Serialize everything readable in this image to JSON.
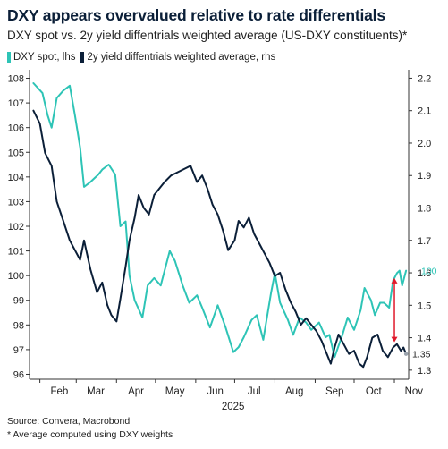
{
  "header": {
    "title": "DXY appears overvalued relative to rate differentials",
    "subtitle": "DXY spot vs. 2y yield diffentrials weighted average (US-DXY constituents)*"
  },
  "footer": {
    "source": "Source: Convera, Macrobond",
    "note": "* Average computed using DXY weights"
  },
  "colors": {
    "dxy": "#2ec4b6",
    "yield": "#0b1f38",
    "arrow": "#e0192b",
    "axis": "#333333"
  },
  "chart_data": {
    "type": "line",
    "title": "DXY appears overvalued relative to rate differentials",
    "subtitle": "DXY spot vs. 2y yield diffentrials weighted average (US-DXY constituents)*",
    "xlabel": "2025",
    "x_ticks": [
      "Feb",
      "Mar",
      "Apr",
      "May",
      "Jun",
      "Jul",
      "Aug",
      "Sep",
      "Oct",
      "Nov"
    ],
    "x_range": [
      "2025-01-24",
      "2025-11-12"
    ],
    "y_left": {
      "label": "",
      "min": 95.8,
      "max": 108.2,
      "ticks": [
        96,
        97,
        98,
        99,
        100,
        101,
        102,
        103,
        104,
        105,
        106,
        107,
        108
      ]
    },
    "y_right": {
      "label": "",
      "min": 1.272,
      "max": 2.215,
      "ticks": [
        1.3,
        1.4,
        1.5,
        1.6,
        1.7,
        1.8,
        1.9,
        2.0,
        2.1,
        2.2
      ]
    },
    "legend": {
      "position": "top-left"
    },
    "series": [
      {
        "name": "DXY spot, lhs",
        "axis": "left",
        "end_label": "100",
        "points": [
          [
            "2025-01-27",
            107.8
          ],
          [
            "2025-02-03",
            107.4
          ],
          [
            "2025-02-07",
            106.5
          ],
          [
            "2025-02-10",
            106.0
          ],
          [
            "2025-02-14",
            107.2
          ],
          [
            "2025-02-19",
            107.5
          ],
          [
            "2025-02-24",
            107.7
          ],
          [
            "2025-02-28",
            106.5
          ],
          [
            "2025-03-04",
            105.2
          ],
          [
            "2025-03-07",
            103.6
          ],
          [
            "2025-03-12",
            103.8
          ],
          [
            "2025-03-18",
            104.1
          ],
          [
            "2025-03-21",
            104.3
          ],
          [
            "2025-03-26",
            104.5
          ],
          [
            "2025-03-31",
            104.1
          ],
          [
            "2025-04-04",
            102.0
          ],
          [
            "2025-04-08",
            102.2
          ],
          [
            "2025-04-11",
            100.0
          ],
          [
            "2025-04-15",
            99.0
          ],
          [
            "2025-04-21",
            98.3
          ],
          [
            "2025-04-25",
            99.6
          ],
          [
            "2025-04-30",
            99.9
          ],
          [
            "2025-05-05",
            99.6
          ],
          [
            "2025-05-12",
            101.0
          ],
          [
            "2025-05-16",
            100.6
          ],
          [
            "2025-05-22",
            99.6
          ],
          [
            "2025-05-27",
            98.9
          ],
          [
            "2025-06-02",
            99.2
          ],
          [
            "2025-06-06",
            98.7
          ],
          [
            "2025-06-12",
            97.9
          ],
          [
            "2025-06-18",
            98.8
          ],
          [
            "2025-06-24",
            97.9
          ],
          [
            "2025-06-30",
            96.9
          ],
          [
            "2025-07-04",
            97.1
          ],
          [
            "2025-07-08",
            97.5
          ],
          [
            "2025-07-14",
            98.2
          ],
          [
            "2025-07-18",
            98.4
          ],
          [
            "2025-07-23",
            97.4
          ],
          [
            "2025-07-29",
            99.3
          ],
          [
            "2025-08-01",
            100.1
          ],
          [
            "2025-08-05",
            98.9
          ],
          [
            "2025-08-11",
            98.2
          ],
          [
            "2025-08-15",
            97.6
          ],
          [
            "2025-08-20",
            98.3
          ],
          [
            "2025-08-25",
            98.1
          ],
          [
            "2025-08-29",
            97.8
          ],
          [
            "2025-09-04",
            98.1
          ],
          [
            "2025-09-09",
            97.5
          ],
          [
            "2025-09-12",
            97.6
          ],
          [
            "2025-09-16",
            96.7
          ],
          [
            "2025-09-22",
            97.6
          ],
          [
            "2025-09-26",
            98.3
          ],
          [
            "2025-10-01",
            97.8
          ],
          [
            "2025-10-06",
            98.6
          ],
          [
            "2025-10-09",
            99.5
          ],
          [
            "2025-10-14",
            99.0
          ],
          [
            "2025-10-17",
            98.4
          ],
          [
            "2025-10-21",
            98.9
          ],
          [
            "2025-10-24",
            98.9
          ],
          [
            "2025-10-28",
            98.7
          ],
          [
            "2025-10-31",
            99.8
          ],
          [
            "2025-11-03",
            100.1
          ],
          [
            "2025-11-05",
            100.2
          ],
          [
            "2025-11-07",
            99.6
          ],
          [
            "2025-11-10",
            100.2
          ]
        ]
      },
      {
        "name": "2y yield diffentrials weighted average, rhs",
        "axis": "right",
        "end_label": "1.35",
        "points": [
          [
            "2025-01-27",
            2.1
          ],
          [
            "2025-02-01",
            2.06
          ],
          [
            "2025-02-05",
            1.97
          ],
          [
            "2025-02-10",
            1.93
          ],
          [
            "2025-02-14",
            1.82
          ],
          [
            "2025-02-19",
            1.76
          ],
          [
            "2025-02-24",
            1.7
          ],
          [
            "2025-02-28",
            1.67
          ],
          [
            "2025-03-04",
            1.64
          ],
          [
            "2025-03-07",
            1.7
          ],
          [
            "2025-03-12",
            1.61
          ],
          [
            "2025-03-17",
            1.54
          ],
          [
            "2025-03-21",
            1.57
          ],
          [
            "2025-03-25",
            1.5
          ],
          [
            "2025-03-28",
            1.47
          ],
          [
            "2025-04-01",
            1.45
          ],
          [
            "2025-04-04",
            1.52
          ],
          [
            "2025-04-08",
            1.62
          ],
          [
            "2025-04-11",
            1.7
          ],
          [
            "2025-04-15",
            1.77
          ],
          [
            "2025-04-18",
            1.84
          ],
          [
            "2025-04-22",
            1.8
          ],
          [
            "2025-04-26",
            1.78
          ],
          [
            "2025-04-30",
            1.84
          ],
          [
            "2025-05-04",
            1.86
          ],
          [
            "2025-05-08",
            1.88
          ],
          [
            "2025-05-13",
            1.9
          ],
          [
            "2025-05-18",
            1.91
          ],
          [
            "2025-05-23",
            1.92
          ],
          [
            "2025-05-28",
            1.93
          ],
          [
            "2025-06-02",
            1.88
          ],
          [
            "2025-06-06",
            1.9
          ],
          [
            "2025-06-10",
            1.86
          ],
          [
            "2025-06-14",
            1.81
          ],
          [
            "2025-06-18",
            1.78
          ],
          [
            "2025-06-22",
            1.73
          ],
          [
            "2025-06-26",
            1.67
          ],
          [
            "2025-07-01",
            1.7
          ],
          [
            "2025-07-04",
            1.76
          ],
          [
            "2025-07-08",
            1.74
          ],
          [
            "2025-07-12",
            1.77
          ],
          [
            "2025-07-16",
            1.72
          ],
          [
            "2025-07-20",
            1.69
          ],
          [
            "2025-07-24",
            1.66
          ],
          [
            "2025-07-28",
            1.63
          ],
          [
            "2025-08-01",
            1.59
          ],
          [
            "2025-08-05",
            1.6
          ],
          [
            "2025-08-09",
            1.55
          ],
          [
            "2025-08-13",
            1.51
          ],
          [
            "2025-08-17",
            1.48
          ],
          [
            "2025-08-21",
            1.44
          ],
          [
            "2025-08-25",
            1.46
          ],
          [
            "2025-08-29",
            1.44
          ],
          [
            "2025-09-02",
            1.42
          ],
          [
            "2025-09-06",
            1.39
          ],
          [
            "2025-09-10",
            1.35
          ],
          [
            "2025-09-13",
            1.32
          ],
          [
            "2025-09-16",
            1.37
          ],
          [
            "2025-09-19",
            1.41
          ],
          [
            "2025-09-23",
            1.38
          ],
          [
            "2025-09-27",
            1.35
          ],
          [
            "2025-10-01",
            1.36
          ],
          [
            "2025-10-05",
            1.32
          ],
          [
            "2025-10-08",
            1.31
          ],
          [
            "2025-10-11",
            1.34
          ],
          [
            "2025-10-15",
            1.4
          ],
          [
            "2025-10-19",
            1.41
          ],
          [
            "2025-10-23",
            1.36
          ],
          [
            "2025-10-27",
            1.34
          ],
          [
            "2025-10-31",
            1.37
          ],
          [
            "2025-11-03",
            1.38
          ],
          [
            "2025-11-06",
            1.36
          ],
          [
            "2025-11-08",
            1.37
          ],
          [
            "2025-11-10",
            1.35
          ]
        ]
      }
    ],
    "annotations": [
      {
        "type": "double-arrow",
        "axis": "left",
        "date": "2025-11-01",
        "from": 99.9,
        "to": 97.3
      }
    ]
  }
}
